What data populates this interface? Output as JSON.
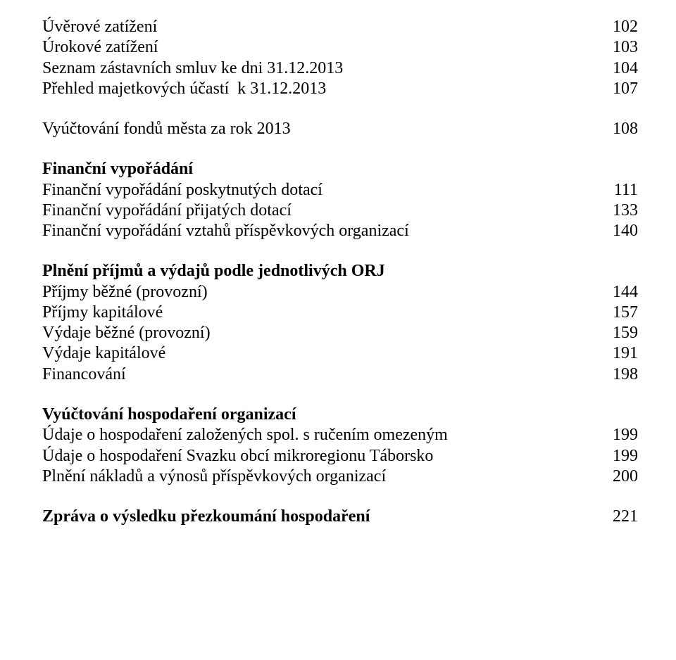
{
  "sections": [
    {
      "heading": null,
      "rows": [
        {
          "label": "Úvěrové zatížení",
          "page": "102"
        },
        {
          "label": "Úrokové zatížení",
          "page": "103"
        },
        {
          "label": "Seznam zástavních smluv ke dni 31.12.2013",
          "page": "104"
        },
        {
          "label": "Přehled majetkových účastí  k 31.12.2013",
          "page": "107"
        }
      ]
    },
    {
      "heading": null,
      "rows": [
        {
          "label": "Vyúčtování fondů města za rok 2013",
          "page": "108"
        }
      ]
    },
    {
      "heading": "Finanční vypořádání",
      "rows": [
        {
          "label": "Finanční vypořádání poskytnutých dotací",
          "page": "111"
        },
        {
          "label": "Finanční vypořádání přijatých dotací",
          "page": "133"
        },
        {
          "label": "Finanční vypořádání vztahů příspěvkových organizací",
          "page": "140"
        }
      ]
    },
    {
      "heading": "Plnění příjmů a výdajů podle jednotlivých ORJ",
      "rows": [
        {
          "label": "Příjmy běžné (provozní)",
          "page": "144"
        },
        {
          "label": "Příjmy kapitálové",
          "page": "157"
        },
        {
          "label": "Výdaje běžné (provozní)",
          "page": "159"
        },
        {
          "label": "Výdaje kapitálové",
          "page": "191"
        },
        {
          "label": "Financování",
          "page": "198"
        }
      ]
    },
    {
      "heading": "Vyúčtování hospodaření organizací",
      "rows": [
        {
          "label": "Údaje o hospodaření založených spol. s ručením omezeným",
          "page": "199"
        },
        {
          "label": "Údaje o hospodaření Svazku obcí mikroregionu Táborsko",
          "page": "199"
        },
        {
          "label": "Plnění nákladů a výnosů příspěvkových organizací",
          "page": "200"
        }
      ]
    },
    {
      "heading": null,
      "heading_row": {
        "label": "Zpráva o výsledku přezkoumání hospodaření",
        "page": "221"
      },
      "rows": []
    }
  ]
}
